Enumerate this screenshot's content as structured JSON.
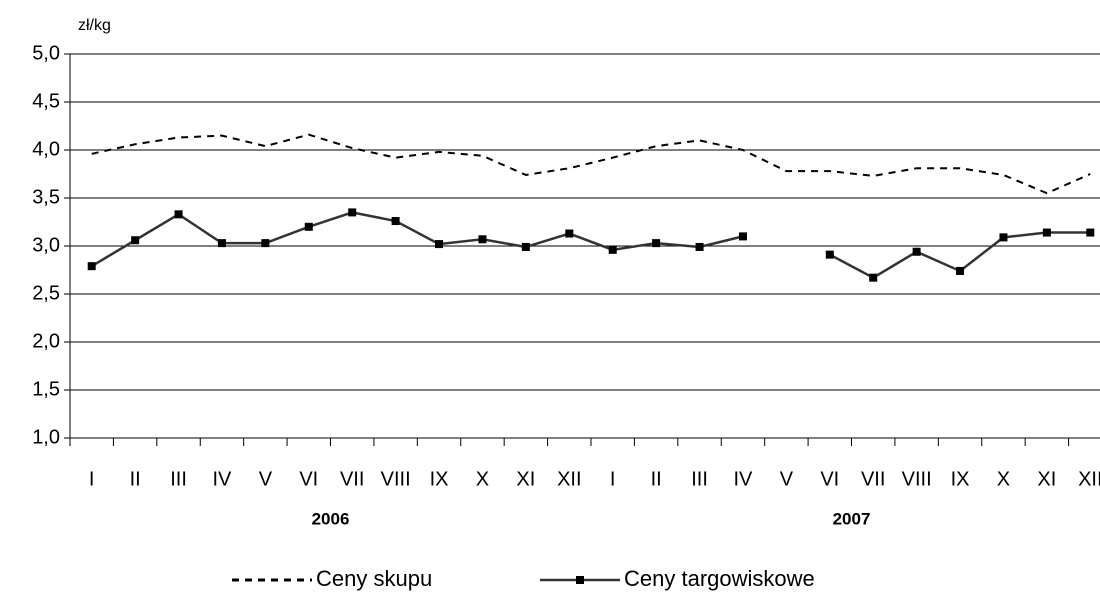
{
  "chart_data": {
    "type": "line",
    "y_label": "zł/kg",
    "categories": [
      "I",
      "II",
      "III",
      "IV",
      "V",
      "VI",
      "VII",
      "VIII",
      "IX",
      "X",
      "XI",
      "XII",
      "I",
      "II",
      "III",
      "IV",
      "V",
      "VI",
      "VII",
      "VIII",
      "IX",
      "X",
      "XI",
      "XII"
    ],
    "x_groups": [
      {
        "label": "2006",
        "start": 0,
        "end": 11
      },
      {
        "label": "2007",
        "start": 12,
        "end": 23
      }
    ],
    "series": [
      {
        "name": "Ceny skupu",
        "color": "#000000",
        "style": "dashed",
        "marker": "none",
        "values": [
          3.96,
          4.06,
          4.13,
          4.15,
          4.04,
          4.16,
          4.02,
          3.92,
          3.98,
          3.94,
          3.74,
          3.81,
          3.92,
          4.04,
          4.1,
          4.0,
          3.78,
          3.78,
          3.73,
          3.81,
          3.81,
          3.74,
          3.55,
          3.75
        ]
      },
      {
        "name": "Ceny targowiskowe",
        "color": "#333333",
        "style": "solid",
        "marker": "square",
        "values": [
          2.79,
          3.06,
          3.33,
          3.03,
          3.03,
          3.2,
          3.35,
          3.26,
          3.02,
          3.07,
          2.99,
          3.13,
          2.96,
          3.03,
          2.99,
          3.1,
          null,
          2.91,
          2.67,
          2.94,
          2.74,
          3.09,
          3.14,
          3.14
        ]
      }
    ],
    "ylim": [
      1,
      5
    ],
    "yticks": [
      {
        "value": 1,
        "label": "1,0"
      },
      {
        "value": 1.5,
        "label": "1,5"
      },
      {
        "value": 2,
        "label": "2,0"
      },
      {
        "value": 2.5,
        "label": "2,5"
      },
      {
        "value": 3,
        "label": "3,0"
      },
      {
        "value": 3.5,
        "label": "3,5"
      },
      {
        "value": 4,
        "label": "4,0"
      },
      {
        "value": 4.5,
        "label": "4,5"
      },
      {
        "value": 5,
        "label": "5,0"
      }
    ],
    "grid": true,
    "legend": "bottom"
  }
}
